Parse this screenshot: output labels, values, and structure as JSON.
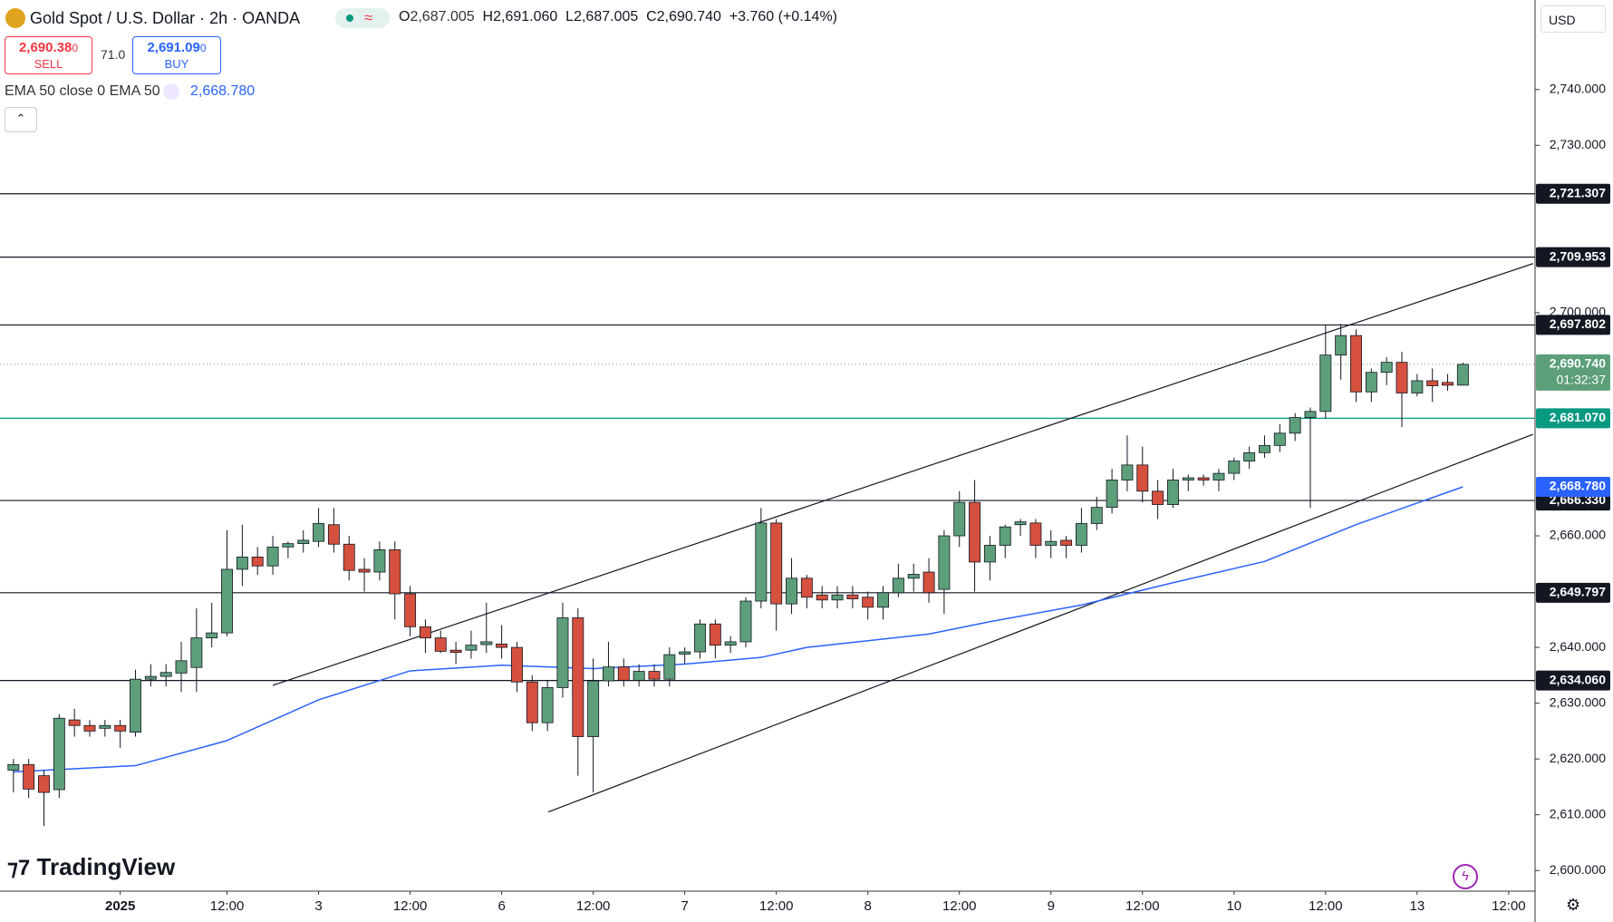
{
  "header": {
    "title": "Gold Spot / U.S. Dollar · 2h · OANDA",
    "o_key": "O",
    "o": "2,687.005",
    "h_key": "H",
    "h": "2,691.060",
    "l_key": "L",
    "l": "2,687.005",
    "c_key": "C",
    "c": "2,690.740",
    "change": "+3.760 (+0.14%)"
  },
  "trade": {
    "sell_price": "2,690.38",
    "sell_small": "0",
    "sell": "SELL",
    "spread": "71.0",
    "buy_price": "2,691.09",
    "buy_small": "0",
    "buy": "BUY"
  },
  "indicator": {
    "name": "EMA 50 close 0 EMA 50",
    "value": "2,668.780"
  },
  "currency": "USD",
  "brand": "TradingView",
  "chart_data": {
    "type": "candlestick",
    "open": [
      2618,
      2619,
      2617,
      2614.5,
      2627,
      2626,
      2625.5,
      2626,
      2624.8,
      2634.3,
      2634.8,
      2635.4,
      2636.4,
      2641.7,
      2642.6,
      2654,
      2656.2,
      2654.6,
      2658,
      2658.6,
      2659,
      2662,
      2658.5,
      2654,
      2653.5,
      2657.5,
      2649.6,
      2643.7,
      2641.7,
      2639.5,
      2639.5,
      2640.5,
      2640.6,
      2640,
      2633.8,
      2626.5,
      2632.8,
      2645.3,
      2624,
      2634,
      2636.5,
      2634.1,
      2635.7,
      2634.3,
      2638.8,
      2639.2,
      2644.2,
      2640.4,
      2641,
      2648.3,
      2662.3,
      2647.8,
      2652.4,
      2649.4,
      2648.5,
      2649.4,
      2649,
      2647.2,
      2649.8,
      2652.4,
      2653.5,
      2650.4,
      2660,
      2666,
      2655.3,
      2658.3,
      2662,
      2662.3,
      2658.3,
      2659.2,
      2658.3,
      2662.2,
      2665.1,
      2670,
      2672.7,
      2668,
      2665.6,
      2670,
      2670.4,
      2670,
      2671.2,
      2673.4,
      2674.9,
      2676.2,
      2678.4,
      2681.2,
      2682.3,
      2692.4,
      2695.9,
      2685.8,
      2689.3,
      2691.1,
      2685.6,
      2687.8,
      2687.5,
      2687.005
    ],
    "high": [
      2620,
      2620,
      2618,
      2628,
      2629,
      2627,
      2627,
      2627,
      2636,
      2637,
      2637,
      2641,
      2647,
      2648,
      2661,
      2662,
      2658,
      2660,
      2659,
      2661,
      2665,
      2665,
      2660,
      2656,
      2659,
      2659,
      2651,
      2645,
      2643,
      2641,
      2643,
      2648,
      2644,
      2641,
      2635,
      2634,
      2648,
      2647,
      2638,
      2641,
      2638,
      2637,
      2637,
      2640,
      2640,
      2645,
      2645,
      2642,
      2649,
      2665,
      2663,
      2656,
      2653,
      2651,
      2651,
      2651,
      2650,
      2651,
      2655,
      2655,
      2656,
      2661,
      2668,
      2670,
      2660,
      2662,
      2663,
      2663,
      2661,
      2660,
      2665,
      2667,
      2672,
      2678,
      2676,
      2670,
      2672,
      2671,
      2671,
      2672,
      2674,
      2676,
      2678,
      2680,
      2682,
      2683,
      2697.8,
      2698,
      2697,
      2690,
      2692,
      2693,
      2689,
      2690,
      2689,
      2691.06
    ],
    "low": [
      2614,
      2613,
      2608,
      2613,
      2624,
      2624,
      2624,
      2622,
      2624,
      2633,
      2633,
      2632,
      2632,
      2640,
      2642,
      2651,
      2653,
      2653,
      2656,
      2657,
      2658,
      2657,
      2652,
      2650,
      2652,
      2645,
      2642,
      2639,
      2639,
      2637,
      2638,
      2639,
      2638,
      2632,
      2625,
      2625,
      2631,
      2617,
      2614,
      2633,
      2633,
      2633,
      2633,
      2633,
      2637,
      2638,
      2638,
      2639,
      2640,
      2647,
      2643,
      2646,
      2647,
      2647,
      2647,
      2647,
      2645,
      2645,
      2649,
      2650,
      2648,
      2646,
      2658,
      2650,
      2652,
      2656,
      2660,
      2656,
      2656,
      2656,
      2657,
      2661,
      2664,
      2668,
      2666,
      2663,
      2665,
      2668,
      2669,
      2668,
      2670,
      2672,
      2674,
      2675,
      2677,
      2665,
      2681,
      2688,
      2684,
      2684,
      2687,
      2679.5,
      2685,
      2684,
      2686,
      2687.005
    ],
    "close": [
      2619,
      2614.6,
      2614,
      2627.3,
      2626,
      2625,
      2626,
      2625,
      2634.3,
      2634.8,
      2635.5,
      2637.6,
      2641.7,
      2642.6,
      2654,
      2656.2,
      2654.6,
      2658,
      2658.6,
      2659.2,
      2662.2,
      2658.5,
      2653.8,
      2653.5,
      2657.5,
      2649.6,
      2643.7,
      2641.7,
      2639.3,
      2639.1,
      2640.4,
      2641,
      2640,
      2633.8,
      2626.5,
      2632.8,
      2645.3,
      2624,
      2634,
      2636.5,
      2634.1,
      2635.7,
      2634.3,
      2638.7,
      2639.2,
      2644.2,
      2640.4,
      2641,
      2648.3,
      2662.3,
      2647.8,
      2652.4,
      2649,
      2648.5,
      2649.4,
      2648.7,
      2647.2,
      2649.8,
      2652.4,
      2653.1,
      2649.8,
      2660,
      2666,
      2655.3,
      2658.3,
      2661.6,
      2662.5,
      2658.3,
      2659,
      2658.3,
      2662.2,
      2665.1,
      2670,
      2672.7,
      2668,
      2665.6,
      2670,
      2670.4,
      2670,
      2671.2,
      2673.4,
      2674.9,
      2676.2,
      2678.4,
      2681.2,
      2682.3,
      2692.4,
      2695.9,
      2685.8,
      2689.3,
      2691.1,
      2685.6,
      2687.8,
      2686.9,
      2687,
      2690.74
    ],
    "up_color": "#5d9f7b",
    "down_color": "#d5503e",
    "ylim": [
      2596.3,
      2756.05
    ],
    "yticks": [
      {
        "value": 2600,
        "label": "2,600.000"
      },
      {
        "value": 2610,
        "label": "2,610.000"
      },
      {
        "value": 2620,
        "label": "2,620.000"
      },
      {
        "value": 2630,
        "label": "2,630.000"
      },
      {
        "value": 2640,
        "label": "2,640.000"
      },
      {
        "value": 2660,
        "label": "2,660.000"
      },
      {
        "value": 2700,
        "label": "2,700.000"
      },
      {
        "value": 2730,
        "label": "2,730.000"
      },
      {
        "value": 2740,
        "label": "2,740.000"
      }
    ],
    "xlim": [
      -0.88,
      99.73
    ],
    "xticks": [
      {
        "value": 7,
        "label": "2025"
      },
      {
        "value": 14,
        "label": "12:00"
      },
      {
        "value": 20,
        "label": "3"
      },
      {
        "value": 26,
        "label": "12:00"
      },
      {
        "value": 32,
        "label": "6"
      },
      {
        "value": 38,
        "label": "12:00"
      },
      {
        "value": 44,
        "label": "7"
      },
      {
        "value": 50,
        "label": "12:00"
      },
      {
        "value": 56,
        "label": "8"
      },
      {
        "value": 62,
        "label": "12:00"
      },
      {
        "value": 68,
        "label": "9"
      },
      {
        "value": 74,
        "label": "12:00"
      },
      {
        "value": 80,
        "label": "10"
      },
      {
        "value": 86,
        "label": "12:00"
      },
      {
        "value": 92,
        "label": "13"
      },
      {
        "value": 98,
        "label": "12:00"
      }
    ],
    "ema": {
      "color": "#2962ff",
      "x": [
        0,
        8,
        14,
        20,
        26,
        32,
        38,
        44,
        49,
        52,
        60,
        64,
        70,
        76,
        82,
        88,
        95
      ],
      "values": [
        2617.7,
        2618.8,
        2623.3,
        2630.6,
        2635.8,
        2636.8,
        2636.2,
        2637,
        2638.2,
        2640,
        2642.4,
        2644.6,
        2647.6,
        2651.6,
        2655.4,
        2662,
        2668.78
      ],
      "axis_label": {
        "value": 2668.78,
        "label": "2,668.780"
      }
    },
    "levels": [
      {
        "value": 2721.307,
        "label": "2,721.307",
        "color": "#131722"
      },
      {
        "value": 2709.953,
        "label": "2,709.953",
        "color": "#131722"
      },
      {
        "value": 2697.802,
        "label": "2,697.802",
        "color": "#131722"
      },
      {
        "value": 2681.07,
        "label": "2,681.070",
        "color": "#089981"
      },
      {
        "value": 2666.33,
        "label": "2,666.330",
        "color": "#131722"
      },
      {
        "value": 2649.797,
        "label": "2,649.797",
        "color": "#131722"
      },
      {
        "value": 2634.06,
        "label": "2,634.060",
        "color": "#131722"
      }
    ],
    "last_price": {
      "value": 2690.74,
      "label": "2,690.740",
      "countdown": "01:32:37",
      "color": "#5d9f7b"
    },
    "trendlines": [
      {
        "x": [
          17,
          99.6
        ],
        "y": [
          2633.2,
          2708.8
        ]
      },
      {
        "x": [
          35.06,
          99.6
        ],
        "y": [
          2610.5,
          2678.2
        ]
      }
    ]
  }
}
